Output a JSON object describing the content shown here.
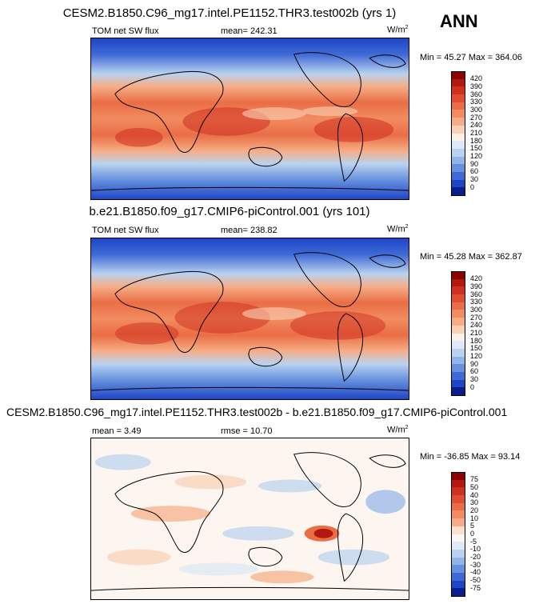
{
  "season_label": "ANN",
  "panels": [
    {
      "title": "CESM2.B1850.C96_mg17.intel.PE1152.THR3.test002b (yrs 1)",
      "variable": "TOM net SW flux",
      "mean_text": "mean= 242.31",
      "units_text": "W/m",
      "units_exp": "2",
      "minmax_text": "Min =  45.27 Max = 364.06",
      "colorbar": {
        "levels": [
          "420",
          "390",
          "360",
          "330",
          "300",
          "270",
          "240",
          "210",
          "180",
          "150",
          "120",
          "90",
          "60",
          "30",
          "0"
        ],
        "colors": [
          "#8b0000",
          "#b2180f",
          "#d03020",
          "#e04d30",
          "#ea6d45",
          "#f28c60",
          "#f6ad86",
          "#f9d1b6",
          "#fdf0e6",
          "#dde9f7",
          "#b9d2f0",
          "#91b5e8",
          "#6791dd",
          "#3e6ad5",
          "#1e45c8",
          "#0a1d8c"
        ]
      }
    },
    {
      "title": "b.e21.B1850.f09_g17.CMIP6-piControl.001 (yrs 101)",
      "variable": "TOM net SW flux",
      "mean_text": "mean= 238.82",
      "units_text": "W/m",
      "units_exp": "2",
      "minmax_text": "Min =  45.28 Max = 362.87",
      "colorbar": {
        "levels": [
          "420",
          "390",
          "360",
          "330",
          "300",
          "270",
          "240",
          "210",
          "180",
          "150",
          "120",
          "90",
          "60",
          "30",
          "0"
        ],
        "colors": [
          "#8b0000",
          "#b2180f",
          "#d03020",
          "#e04d30",
          "#ea6d45",
          "#f28c60",
          "#f6ad86",
          "#f9d1b6",
          "#fdf0e6",
          "#dde9f7",
          "#b9d2f0",
          "#91b5e8",
          "#6791dd",
          "#3e6ad5",
          "#1e45c8",
          "#0a1d8c"
        ]
      }
    },
    {
      "title": "CESM2.B1850.C96_mg17.intel.PE1152.THR3.test002b - b.e21.B1850.f09_g17.CMIP6-piControl.001",
      "mean_text": "mean =   3.49",
      "rmse_text": "rmse =  10.70",
      "units_text": "W/m",
      "units_exp": "2",
      "minmax_text": "Min = -36.85 Max =  93.14",
      "colorbar": {
        "levels": [
          "75",
          "50",
          "40",
          "30",
          "20",
          "10",
          "5",
          "0",
          "-5",
          "-10",
          "-20",
          "-30",
          "-40",
          "-50",
          "-75"
        ],
        "colors": [
          "#8b0000",
          "#b2180f",
          "#d03020",
          "#e04d30",
          "#ea6d45",
          "#f28c60",
          "#f6ad86",
          "#fbe0cf",
          "#fdf5ef",
          "#dde9f7",
          "#b9d2f0",
          "#91b5e8",
          "#6791dd",
          "#3e6ad5",
          "#1e45c8",
          "#0a1d8c"
        ]
      }
    }
  ]
}
